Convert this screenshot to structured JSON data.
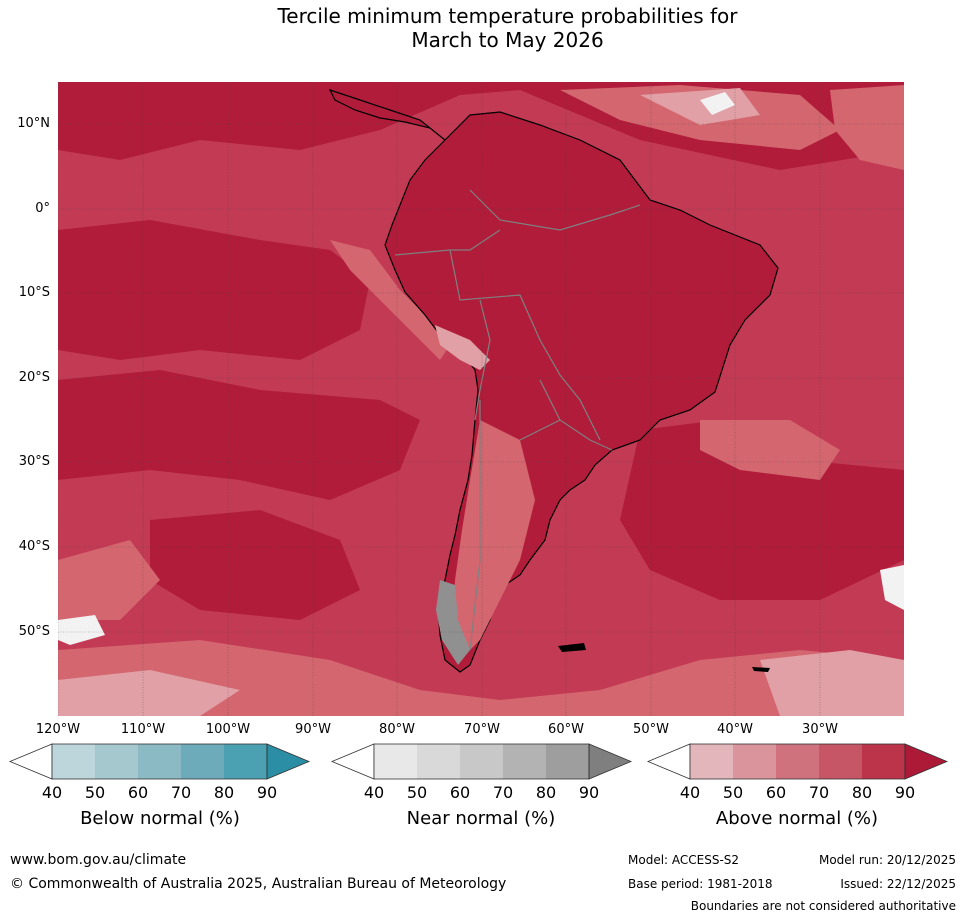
{
  "title_line1": "Tercile minimum temperature probabilities for",
  "title_line2": "March to May 2026",
  "map": {
    "latitude_labels": [
      "10°N",
      "0°",
      "10°S",
      "20°S",
      "30°S",
      "40°S",
      "50°S"
    ],
    "longitude_labels": [
      "120°W",
      "110°W",
      "100°W",
      "90°W",
      "80°W",
      "70°W",
      "60°W",
      "50°W",
      "40°W",
      "30°W"
    ],
    "dominant_category": "Above normal",
    "colors": {
      "ocean_main": "#c23a54",
      "land_main": "#b01c3a",
      "strong": "#b01c3a",
      "medium": "#c63e56",
      "light": "#d4666f",
      "lighter": "#e1a0a6",
      "near_normal_grey": "#909090",
      "white": "#f2f2f2"
    }
  },
  "colorbars": [
    {
      "title": "Below normal (%)",
      "ticks": [
        "40",
        "50",
        "60",
        "70",
        "80",
        "90"
      ],
      "colors": [
        "#ffffff",
        "#bcd6dc",
        "#a5c8cf",
        "#8bb9c4",
        "#6dabba",
        "#4ba1b2",
        "#2b8ea4"
      ]
    },
    {
      "title": "Near normal (%)",
      "ticks": [
        "40",
        "50",
        "60",
        "70",
        "80",
        "90"
      ],
      "colors": [
        "#ffffff",
        "#e8e8e8",
        "#d9d9d9",
        "#c8c8c8",
        "#b3b3b3",
        "#9e9e9e",
        "#7f7f7f"
      ]
    },
    {
      "title": "Above normal (%)",
      "ticks": [
        "40",
        "50",
        "60",
        "70",
        "80",
        "90"
      ],
      "colors": [
        "#ffffff",
        "#e3b6bc",
        "#d9949c",
        "#cf727e",
        "#c65565",
        "#bc344a",
        "#ad1a38"
      ]
    }
  ],
  "footer": {
    "website": "www.bom.gov.au/climate",
    "copyright": "© Commonwealth of Australia 2025, Australian Bureau of Meteorology",
    "model": "Model: ACCESS-S2",
    "base_period": "Base period: 1981-2018",
    "model_run": "Model run: 20/12/2025",
    "issued": "Issued: 22/12/2025",
    "disclaimer": "Boundaries are not considered authoritative"
  }
}
